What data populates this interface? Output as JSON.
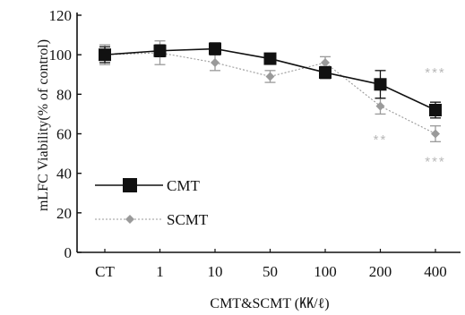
{
  "chart_data": {
    "type": "line",
    "title": "",
    "xlabel": "CMT&SCMT (㏍/ℓ)",
    "ylabel": "mLFC Viability(% of control)",
    "categories": [
      "CT",
      "1",
      "10",
      "50",
      "100",
      "200",
      "400"
    ],
    "yticks": [
      "0",
      "20",
      "40",
      "60",
      "80",
      "100",
      "120"
    ],
    "ylim": [
      0,
      120
    ],
    "grid": false,
    "legend_position": "bottom-left",
    "series": [
      {
        "name": "CMT",
        "marker": "square",
        "color": "#111111",
        "values": [
          100,
          102,
          103,
          98,
          91,
          85,
          72
        ],
        "errors": [
          4,
          3,
          3,
          2,
          3,
          7,
          4
        ]
      },
      {
        "name": "SCMT",
        "marker": "diamond",
        "color": "#9a9a9a",
        "values": [
          100,
          101,
          96,
          89,
          96,
          74,
          60
        ],
        "errors": [
          5,
          6,
          4,
          3,
          3,
          4,
          4
        ]
      }
    ],
    "annotations": [
      {
        "text": "***",
        "category": "400",
        "value": 91
      },
      {
        "text": "**",
        "category": "200",
        "value": 57
      },
      {
        "text": "***",
        "category": "400",
        "value": 46
      }
    ]
  }
}
